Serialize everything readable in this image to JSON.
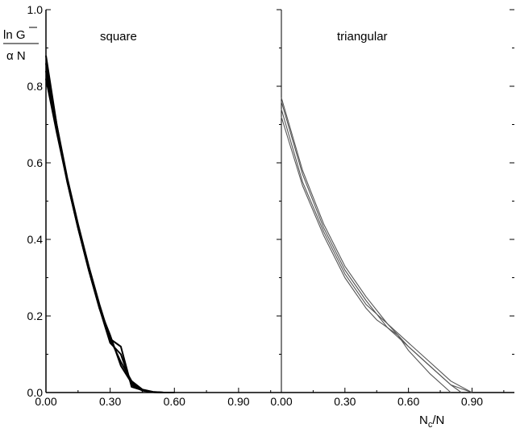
{
  "chart_data": [
    {
      "type": "line",
      "panel_label": "square",
      "ylabel_numerator": "ln G",
      "ylabel_denominator": "α N",
      "xlim": [
        0,
        1.1
      ],
      "ylim": [
        0,
        1.0
      ],
      "x_ticks": [
        "0.00",
        "0.30",
        "0.60",
        "0.90"
      ],
      "y_ticks": [
        "0.0",
        "0.2",
        "0.4",
        "0.6",
        "0.8",
        "1.0"
      ],
      "series": [
        {
          "x": [
            0.0,
            0.05,
            0.1,
            0.15,
            0.2,
            0.25,
            0.3,
            0.35,
            0.4,
            0.45,
            0.5,
            0.55,
            0.6
          ],
          "y": [
            0.88,
            0.7,
            0.56,
            0.44,
            0.33,
            0.23,
            0.14,
            0.08,
            0.03,
            0.008,
            0.002,
            0.0,
            0.0
          ]
        },
        {
          "x": [
            0.0,
            0.05,
            0.1,
            0.15,
            0.2,
            0.25,
            0.3,
            0.35,
            0.4,
            0.45,
            0.5,
            0.55,
            0.6
          ],
          "y": [
            0.86,
            0.7,
            0.55,
            0.43,
            0.32,
            0.22,
            0.13,
            0.1,
            0.02,
            0.005,
            0.001,
            0.0,
            0.0
          ]
        },
        {
          "x": [
            0.0,
            0.05,
            0.1,
            0.15,
            0.2,
            0.25,
            0.3,
            0.35,
            0.4,
            0.45,
            0.5,
            0.55,
            0.6
          ],
          "y": [
            0.84,
            0.69,
            0.55,
            0.43,
            0.32,
            0.22,
            0.14,
            0.12,
            0.015,
            0.006,
            0.001,
            0.0,
            0.0
          ]
        },
        {
          "x": [
            0.0,
            0.05,
            0.1,
            0.15,
            0.2,
            0.25,
            0.3,
            0.35,
            0.4,
            0.45,
            0.5,
            0.55,
            0.6
          ],
          "y": [
            0.82,
            0.68,
            0.55,
            0.43,
            0.32,
            0.22,
            0.15,
            0.07,
            0.025,
            0.007,
            0.001,
            0.0,
            0.0
          ]
        }
      ]
    },
    {
      "type": "line",
      "panel_label": "triangular",
      "xlabel": "N",
      "xlabel_sub": "c",
      "xlabel_suffix": "/N",
      "xlim": [
        0,
        1.1
      ],
      "ylim": [
        0,
        1.0
      ],
      "x_ticks": [
        "0.00",
        "0.30",
        "0.60",
        "0.90"
      ],
      "series": [
        {
          "x": [
            0.0,
            0.1,
            0.2,
            0.3,
            0.4,
            0.45,
            0.5,
            0.55,
            0.6,
            0.7,
            0.8
          ],
          "y": [
            0.72,
            0.54,
            0.41,
            0.3,
            0.22,
            0.19,
            0.17,
            0.15,
            0.11,
            0.05,
            0.0
          ]
        },
        {
          "x": [
            0.0,
            0.1,
            0.2,
            0.3,
            0.4,
            0.5,
            0.55,
            0.6,
            0.7,
            0.8,
            0.85
          ],
          "y": [
            0.74,
            0.55,
            0.42,
            0.31,
            0.23,
            0.18,
            0.15,
            0.12,
            0.07,
            0.02,
            0.0
          ]
        },
        {
          "x": [
            0.0,
            0.1,
            0.2,
            0.3,
            0.4,
            0.5,
            0.6,
            0.7,
            0.8,
            0.9
          ],
          "y": [
            0.76,
            0.57,
            0.43,
            0.32,
            0.24,
            0.17,
            0.12,
            0.07,
            0.02,
            0.0
          ]
        },
        {
          "x": [
            0.0,
            0.1,
            0.2,
            0.3,
            0.4,
            0.5,
            0.6,
            0.7,
            0.8,
            0.9
          ],
          "y": [
            0.77,
            0.58,
            0.44,
            0.33,
            0.25,
            0.18,
            0.13,
            0.08,
            0.03,
            0.0
          ]
        }
      ]
    }
  ],
  "colors": {
    "left_lines": "#000000",
    "right_lines": "#555555",
    "axis": "#000000"
  }
}
